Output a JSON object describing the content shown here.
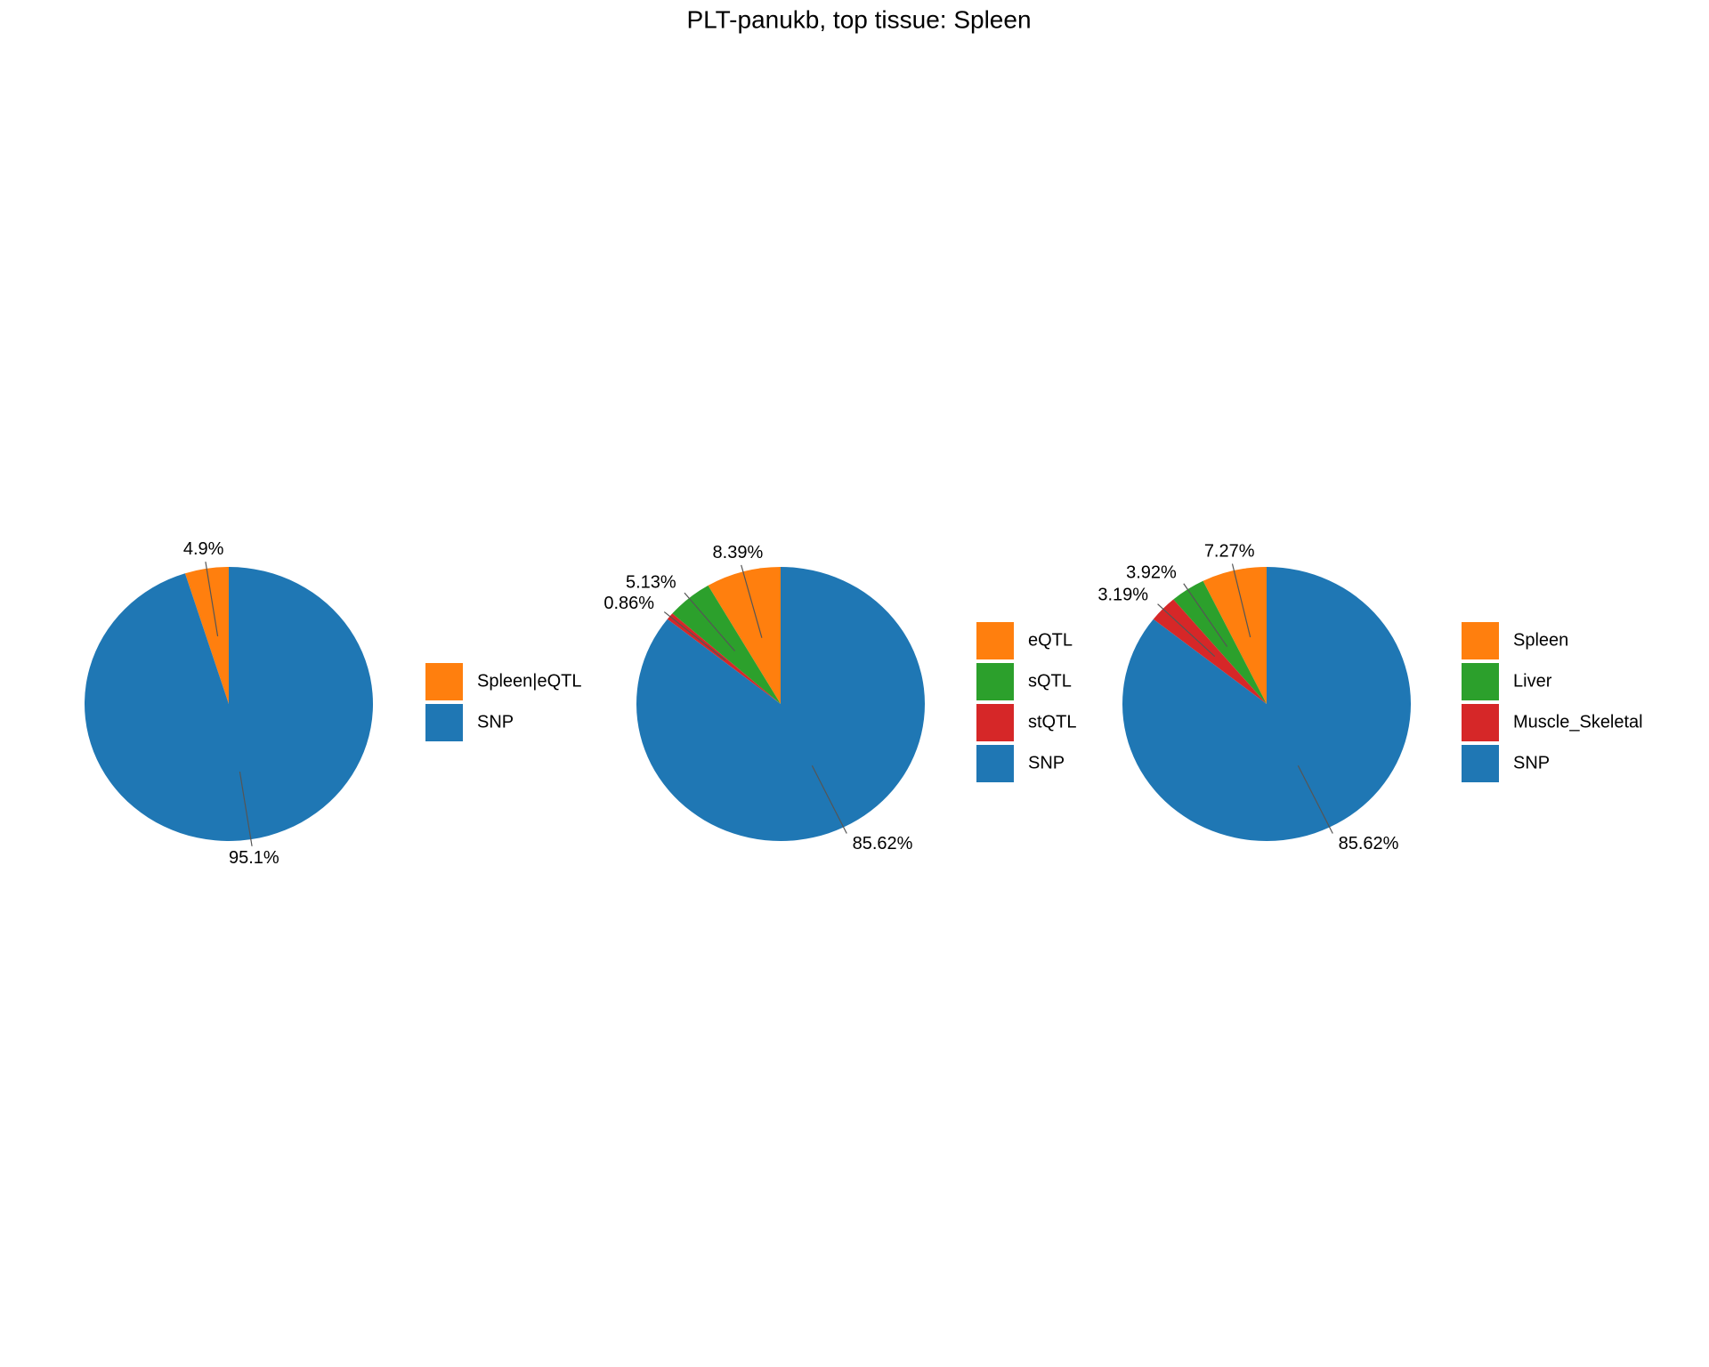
{
  "title": "PLT-panukb, top tissue: Spleen",
  "chart_data": [
    {
      "type": "pie",
      "categories": [
        "Spleen|eQTL",
        "SNP"
      ],
      "values": [
        4.9,
        95.1
      ],
      "value_labels": [
        "4.9%",
        "95.1%"
      ],
      "colors": [
        "#ff7f0e",
        "#1f77b4"
      ]
    },
    {
      "type": "pie",
      "categories": [
        "eQTL",
        "sQTL",
        "stQTL",
        "SNP"
      ],
      "values": [
        8.39,
        5.13,
        0.86,
        85.62
      ],
      "value_labels": [
        "8.39%",
        "5.13%",
        "0.86%",
        "85.62%"
      ],
      "colors": [
        "#ff7f0e",
        "#2ca02c",
        "#d62728",
        "#1f77b4"
      ]
    },
    {
      "type": "pie",
      "categories": [
        "Spleen",
        "Liver",
        "Muscle_Skeletal",
        "SNP"
      ],
      "values": [
        7.27,
        3.92,
        3.19,
        85.62
      ],
      "value_labels": [
        "7.27%",
        "3.92%",
        "3.19%",
        "85.62%"
      ],
      "colors": [
        "#ff7f0e",
        "#2ca02c",
        "#d62728",
        "#1f77b4"
      ]
    }
  ]
}
